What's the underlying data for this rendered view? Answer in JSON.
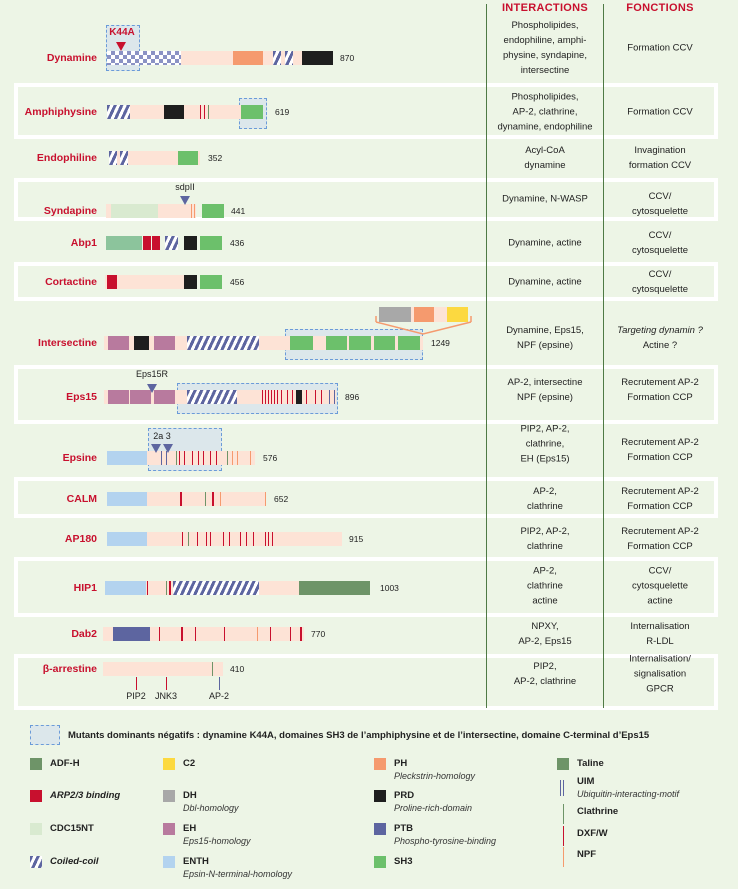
{
  "header": {
    "interactions": "INTERACTIONS",
    "fonctions": "FONCTIONS"
  },
  "colors": {
    "label": "#c8102e",
    "background": "#edf5e6",
    "peach": "#fde3d6",
    "ph": "#f59a6e",
    "sh3": "#6cc06b",
    "enth": "#b3d3ef",
    "eh": "#b87a9e",
    "ptb": "#5d65a0",
    "taline": "#6e9468",
    "adfh": "#6e9468",
    "cdc15nt": "#d9ead0",
    "dh": "#a8a8a8",
    "c2": "#fcd940",
    "prd": "#1e1e1e",
    "arp23": "#c8102e"
  },
  "proteins": [
    {
      "name": "Dynamine",
      "length": "870",
      "interactions": [
        "Phospholipides,",
        "endophiline, amphi-",
        "physine, syndapine,",
        "intersectine"
      ],
      "functions": [
        "Formation CCV"
      ]
    },
    {
      "name": "Amphiphysine",
      "length": "619",
      "interactions": [
        "Phospholipides,",
        "AP-2, clathrine,",
        "dynamine, endophiline"
      ],
      "functions": [
        "Formation CCV"
      ]
    },
    {
      "name": "Endophiline",
      "length": "352",
      "interactions": [
        "Acyl-CoA",
        "dynamine"
      ],
      "functions": [
        "Invagination",
        "formation CCV"
      ]
    },
    {
      "name": "Syndapine",
      "length": "441",
      "interactions": [
        "Dynamine, N-WASP"
      ],
      "functions": [
        "CCV/",
        "cytosquelette"
      ]
    },
    {
      "name": "Abp1",
      "length": "436",
      "interactions": [
        "Dynamine, actine"
      ],
      "functions": [
        "CCV/",
        "cytosquelette"
      ]
    },
    {
      "name": "Cortactine",
      "length": "456",
      "interactions": [
        "Dynamine, actine"
      ],
      "functions": [
        "CCV/",
        "cytosquelette"
      ]
    },
    {
      "name": "Intersectine",
      "length": "1249",
      "interactions": [
        "Dynamine, Eps15,",
        "NPF (epsine)"
      ],
      "functions": [
        "Targeting dynamin ?",
        "Actine ?"
      ]
    },
    {
      "name": "Eps15",
      "length": "896",
      "interactions": [
        "AP-2, intersectine",
        "NPF (epsine)"
      ],
      "functions": [
        "Recrutement AP-2",
        "Formation CCP"
      ]
    },
    {
      "name": "Epsine",
      "length": "576",
      "interactions": [
        "PIP2, AP-2,",
        "clathrine,",
        "EH (Eps15)"
      ],
      "functions": [
        "Recrutement AP-2",
        "Formation CCP"
      ]
    },
    {
      "name": "CALM",
      "length": "652",
      "interactions": [
        "AP-2,",
        "clathrine"
      ],
      "functions": [
        "Recrutement AP-2",
        "Formation CCP"
      ]
    },
    {
      "name": "AP180",
      "length": "915",
      "interactions": [
        "PIP2, AP-2,",
        "clathrine"
      ],
      "functions": [
        "Recrutement AP-2",
        "Formation CCP"
      ]
    },
    {
      "name": "HIP1",
      "length": "1003",
      "interactions": [
        "AP-2,",
        "clathrine",
        "actine"
      ],
      "functions": [
        "CCV/",
        "cytosquelette",
        "actine"
      ]
    },
    {
      "name": "Dab2",
      "length": "770",
      "interactions": [
        "NPXY,",
        "AP-2, Eps15"
      ],
      "functions": [
        "Internalisation",
        "R-LDL"
      ]
    },
    {
      "name": "β-arrestine",
      "length": "410",
      "interactions": [
        "PIP2,",
        "AP-2, clathrine"
      ],
      "functions": [
        "Internalisation/",
        "signalisation",
        "GPCR"
      ]
    }
  ],
  "annotations": {
    "k44a": "K44A",
    "sdpii": "sdpII",
    "eps15r": "Eps15R",
    "epsin_sites": "2a 3",
    "pip2": "PIP2",
    "jnk3": "JNK3",
    "ap2": "AP-2"
  },
  "mutant_note": "Mutants dominants négatifs : dynamine K44A, domaines SH3 de l’amphiphysine et de l’intersectine, domaine C-terminal d’Eps15",
  "legend": [
    {
      "label": "ADF-H",
      "sub": "",
      "icon": "box",
      "color": "#6e9468"
    },
    {
      "label": "ARP2/3 binding",
      "sub": "",
      "icon": "box",
      "color": "#c8102e",
      "italic": true
    },
    {
      "label": "CDC15NT",
      "sub": "",
      "icon": "box",
      "color": "#d9ead0"
    },
    {
      "label": "Coiled-coil",
      "sub": "",
      "icon": "hatch",
      "color": "#5d65a0",
      "italic": true
    },
    {
      "label": "C2",
      "sub": "",
      "icon": "box",
      "color": "#fcd940"
    },
    {
      "label": "DH",
      "sub": "Dbl-homology",
      "icon": "box",
      "color": "#a8a8a8"
    },
    {
      "label": "EH",
      "sub": "Eps15-homology",
      "icon": "box",
      "color": "#b87a9e"
    },
    {
      "label": "ENTH",
      "sub": "Epsin-N-terminal-homology",
      "icon": "box",
      "color": "#b3d3ef"
    },
    {
      "label": "PH",
      "sub": "Pleckstrin-homology",
      "icon": "box",
      "color": "#f59a6e"
    },
    {
      "label": "PRD",
      "sub": "Proline-rich-domain",
      "icon": "box",
      "color": "#1e1e1e"
    },
    {
      "label": "PTB",
      "sub": "Phospho-tyrosine-binding",
      "icon": "box",
      "color": "#5d65a0"
    },
    {
      "label": "SH3",
      "sub": "",
      "icon": "box",
      "color": "#6cc06b"
    },
    {
      "label": "Taline",
      "sub": "",
      "icon": "box",
      "color": "#6e9468"
    },
    {
      "label": "UIM",
      "sub": "Ubiquitin-interacting-motif",
      "icon": "double-line",
      "color": "#5d65a0"
    },
    {
      "label": "Clathrine",
      "sub": "",
      "icon": "line",
      "color": "#6e9468"
    },
    {
      "label": "DXF/W",
      "sub": "",
      "icon": "line",
      "color": "#c8102e"
    },
    {
      "label": "NPF",
      "sub": "",
      "icon": "line",
      "color": "#f59a6e"
    }
  ]
}
